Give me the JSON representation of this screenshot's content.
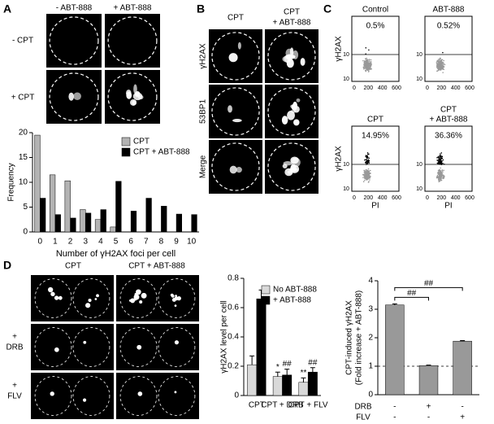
{
  "panel_labels": [
    "A",
    "B",
    "C",
    "D"
  ],
  "panel_a": {
    "column_labels": [
      "- ABT-888",
      "+ ABT-888"
    ],
    "row_labels": [
      "-  CPT",
      "+ CPT"
    ]
  },
  "panel_b": {
    "column_labels": [
      [
        "CPT"
      ],
      [
        "CPT",
        "+ ABT-888"
      ]
    ],
    "row_labels": [
      "γH2AX",
      "53BP1",
      "Merge"
    ]
  },
  "panel_c": {
    "y_label": "γH2AX",
    "x_label": "PI",
    "xtick_labels": [
      "0",
      "200",
      "400",
      "600"
    ],
    "ytick_labels": [
      "10",
      "10"
    ],
    "plots": [
      {
        "title": [
          "Control"
        ],
        "percent": "0.5%"
      },
      {
        "title": [
          "ABT-888"
        ],
        "percent": "0.52%"
      },
      {
        "title": [
          "CPT"
        ],
        "percent": "14.95%"
      },
      {
        "title": [
          "CPT",
          "+ ABT-888"
        ],
        "percent": "36.36%"
      }
    ]
  },
  "panel_d": {
    "column_labels": [
      "CPT",
      "CPT + ABT-888"
    ],
    "row_labels": [
      [
        "+",
        "DRB"
      ],
      [
        "+",
        "FLV"
      ]
    ],
    "treatment_table": [
      {
        "label": "DRB",
        "marks": [
          "-",
          "+",
          "-"
        ]
      },
      {
        "label": "FLV",
        "marks": [
          "-",
          "-",
          "+"
        ]
      }
    ]
  },
  "chart_data": [
    {
      "type": "bar",
      "y_label": "Frequency",
      "x_label": "Number of γH2AX foci  per cell",
      "categories": [
        "0",
        "1",
        "2",
        "3",
        "4",
        "5",
        "6",
        "7",
        "8",
        "9",
        "10"
      ],
      "series": [
        {
          "name": "CPT",
          "color": "#b3b3b3",
          "values": [
            19.5,
            11.5,
            10.3,
            4.5,
            2.5,
            1,
            0,
            0,
            0,
            0,
            0
          ]
        },
        {
          "name": "CPT + ABT-888",
          "color": "#000000",
          "values": [
            6.8,
            3.5,
            2.8,
            3.8,
            4.5,
            10.2,
            4.2,
            6.8,
            5.2,
            3.6,
            3.5
          ]
        }
      ],
      "ylim": [
        0,
        20
      ],
      "yticks": [
        0,
        5,
        10,
        15,
        20
      ]
    },
    {
      "type": "bar",
      "y_label": "γH2AX level per cell",
      "categories": [
        "CPT",
        "CPT + DRB",
        "CPT + FLV"
      ],
      "series": [
        {
          "name": "No ABT-888",
          "color": "#d9d9d9",
          "values": [
            0.21,
            0.13,
            0.09
          ],
          "errors": [
            0.06,
            0.03,
            0.03
          ]
        },
        {
          "name": "+ ABT-888",
          "color": "#000000",
          "values": [
            0.66,
            0.14,
            0.16
          ],
          "errors": [
            0.06,
            0.04,
            0.03
          ]
        }
      ],
      "annotations": [
        {
          "text": "*",
          "series": 0,
          "index": 1
        },
        {
          "text": "##",
          "series": 1,
          "index": 1
        },
        {
          "text": "**",
          "series": 0,
          "index": 2
        },
        {
          "text": "##",
          "series": 1,
          "index": 2
        }
      ],
      "ylim": [
        0,
        0.8
      ],
      "yticks": [
        0,
        0.2,
        0.4,
        0.6,
        0.8
      ]
    },
    {
      "type": "bar",
      "y_label": [
        "CPT-induced γH2AX",
        "(Fold increase + ABT-888)"
      ],
      "categories": [
        null,
        null,
        null
      ],
      "series": [
        {
          "color": "#999999",
          "values": [
            3.15,
            1.02,
            1.88
          ],
          "errors": [
            0.04,
            0.02,
            0.02
          ]
        }
      ],
      "reference_line": 1,
      "brackets": [
        {
          "text": "##",
          "from": 0,
          "to": 1
        },
        {
          "text": "##",
          "from": 0,
          "to": 2
        }
      ],
      "ylim": [
        0,
        4
      ],
      "yticks": [
        0,
        1,
        2,
        3,
        4
      ]
    }
  ]
}
